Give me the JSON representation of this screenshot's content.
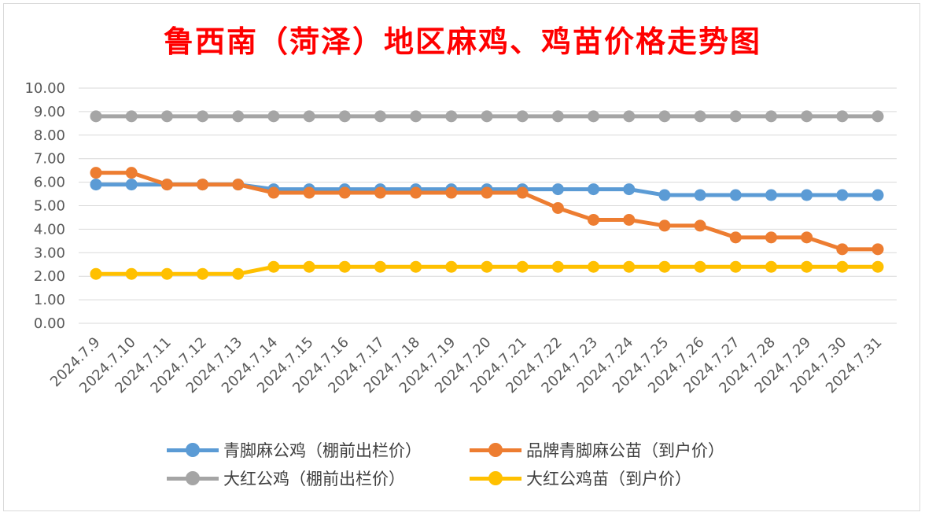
{
  "chart_data": {
    "type": "line",
    "title": "鲁西南（菏泽）地区麻鸡、鸡苗价格走势图",
    "categories": [
      "2024.7.9",
      "2024.7.10",
      "2024.7.11",
      "2024.7.12",
      "2024.7.13",
      "2024.7.14",
      "2024.7.15",
      "2024.7.16",
      "2024.7.17",
      "2024.7.18",
      "2024.7.19",
      "2024.7.20",
      "2024.7.21",
      "2024.7.22",
      "2024.7.23",
      "2024.7.24",
      "2024.7.25",
      "2024.7.26",
      "2024.7.27",
      "2024.7.28",
      "2024.7.29",
      "2024.7.30",
      "2024.7.31"
    ],
    "y_ticks": [
      "0.00",
      "1.00",
      "2.00",
      "3.00",
      "4.00",
      "5.00",
      "6.00",
      "7.00",
      "8.00",
      "9.00",
      "10.00"
    ],
    "ylim": [
      0,
      10
    ],
    "grid": true,
    "legend_position": "bottom",
    "series": [
      {
        "name": "青脚麻公鸡（棚前出栏价）",
        "color": "#5b9bd5",
        "values": [
          5.9,
          5.9,
          5.9,
          5.9,
          5.9,
          5.7,
          5.7,
          5.7,
          5.7,
          5.7,
          5.7,
          5.7,
          5.7,
          5.7,
          5.7,
          5.7,
          5.45,
          5.45,
          5.45,
          5.45,
          5.45,
          5.45,
          5.45
        ]
      },
      {
        "name": "品牌青脚麻公苗（到户价）",
        "color": "#ed7d31",
        "values": [
          6.4,
          6.4,
          5.9,
          5.9,
          5.9,
          5.55,
          5.55,
          5.55,
          5.55,
          5.55,
          5.55,
          5.55,
          5.55,
          4.9,
          4.4,
          4.4,
          4.15,
          4.15,
          3.65,
          3.65,
          3.65,
          3.15,
          3.15
        ]
      },
      {
        "name": "大红公鸡（棚前出栏价）",
        "color": "#a5a5a5",
        "values": [
          8.8,
          8.8,
          8.8,
          8.8,
          8.8,
          8.8,
          8.8,
          8.8,
          8.8,
          8.8,
          8.8,
          8.8,
          8.8,
          8.8,
          8.8,
          8.8,
          8.8,
          8.8,
          8.8,
          8.8,
          8.8,
          8.8,
          8.8
        ]
      },
      {
        "name": "大红公鸡苗（到户价）",
        "color": "#ffc000",
        "values": [
          2.1,
          2.1,
          2.1,
          2.1,
          2.1,
          2.4,
          2.4,
          2.4,
          2.4,
          2.4,
          2.4,
          2.4,
          2.4,
          2.4,
          2.4,
          2.4,
          2.4,
          2.4,
          2.4,
          2.4,
          2.4,
          2.4,
          2.4
        ]
      }
    ]
  }
}
